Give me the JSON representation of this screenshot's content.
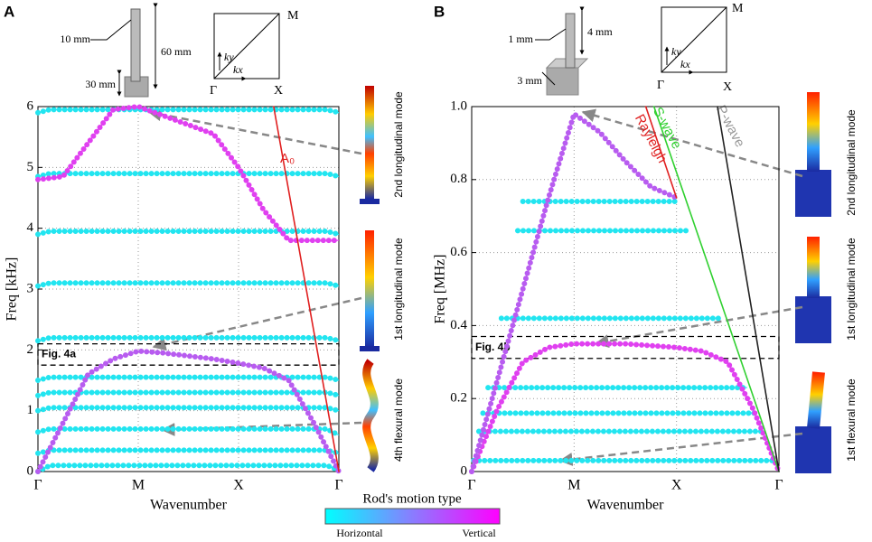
{
  "colorbar": {
    "title": "Rod's motion type",
    "min_label": "Horizontal",
    "max_label": "Vertical"
  },
  "chart_data": [
    {
      "type": "line",
      "panel_label": "A",
      "x_label": "Wavenumber",
      "y_label": "Freq [kHz]",
      "xlim": [
        0,
        3
      ],
      "ylim": [
        0,
        6
      ],
      "xticks": [
        {
          "value": 0,
          "label": "Γ"
        },
        {
          "value": 1,
          "label": "M"
        },
        {
          "value": 2,
          "label": "X"
        },
        {
          "value": 3,
          "label": "Γ"
        }
      ],
      "yticks": [
        0,
        1,
        2,
        3,
        4,
        5,
        6
      ],
      "grid": true,
      "highlight": {
        "label": "Fig. 4a",
        "range": [
          1.75,
          2.1
        ]
      },
      "line_labels": [
        "A₀"
      ],
      "inset_labels": [
        "10 mm",
        "60 mm",
        "30 mm",
        "M",
        "ky",
        "kx",
        "Γ",
        "X"
      ],
      "mode_labels": [
        "2nd longitudinal mode",
        "1st longitudinal mode",
        "4th flexural mode"
      ],
      "series": [
        {
          "color": "#22e5f0",
          "style": "dots",
          "x": [
            0,
            0.12,
            2.88,
            3
          ],
          "values": [
            0,
            0.1,
            0.1,
            0.02
          ]
        },
        {
          "color": "#22e5f0",
          "style": "dots",
          "x": [
            0,
            0.12,
            2.88,
            3
          ],
          "values": [
            0.3,
            0.35,
            0.35,
            0.3
          ]
        },
        {
          "color": "#22e5f0",
          "style": "dots",
          "x": [
            0,
            0.12,
            2.88,
            3
          ],
          "values": [
            0.65,
            0.7,
            0.7,
            0.6
          ]
        },
        {
          "color": "#22e5f0",
          "style": "dots",
          "x": [
            0,
            0.12,
            2.88,
            3
          ],
          "values": [
            1.0,
            1.05,
            1.05,
            1.0
          ]
        },
        {
          "color": "#22e5f0",
          "style": "dots",
          "x": [
            0,
            0.12,
            2.88,
            3
          ],
          "values": [
            1.25,
            1.3,
            1.3,
            1.25
          ]
        },
        {
          "color": "#22e5f0",
          "style": "dots",
          "x": [
            0,
            0.12,
            2.88,
            3
          ],
          "values": [
            1.5,
            1.55,
            1.55,
            1.5
          ]
        },
        {
          "color": "#22e5f0",
          "style": "dots",
          "x": [
            0,
            0.12,
            2.88,
            3
          ],
          "values": [
            2.15,
            2.2,
            2.2,
            2.15
          ]
        },
        {
          "color": "#22e5f0",
          "style": "dots",
          "x": [
            0,
            0.12,
            2.88,
            3
          ],
          "values": [
            3.05,
            3.1,
            3.1,
            3.05
          ]
        },
        {
          "color": "#22e5f0",
          "style": "dots",
          "x": [
            0,
            0.12,
            2.88,
            3
          ],
          "values": [
            3.9,
            3.95,
            3.95,
            3.9
          ]
        },
        {
          "color": "#22e5f0",
          "style": "dots",
          "x": [
            0,
            0.12,
            2.88,
            3
          ],
          "values": [
            4.85,
            4.9,
            4.9,
            4.85
          ]
        },
        {
          "color": "#22e5f0",
          "style": "dots",
          "x": [
            0,
            0.12,
            2.88,
            3
          ],
          "values": [
            5.9,
            5.95,
            5.95,
            5.9
          ]
        },
        {
          "color": "#b85cf0",
          "style": "dots",
          "x": [
            0,
            0.25,
            0.5,
            0.75,
            1,
            1.25,
            1.5,
            1.75,
            2,
            2.25,
            2.5,
            2.75,
            3
          ],
          "values": [
            0,
            0.8,
            1.6,
            1.85,
            1.98,
            1.95,
            1.9,
            1.85,
            1.78,
            1.7,
            1.5,
            0.8,
            0
          ]
        },
        {
          "color": "#e040f0",
          "style": "dots",
          "x": [
            0,
            0.25,
            0.5,
            0.75,
            1,
            1.25,
            1.5,
            1.75,
            2,
            2.25,
            2.5,
            2.75,
            3
          ],
          "values": [
            4.8,
            4.85,
            5.4,
            5.95,
            6.0,
            5.85,
            5.7,
            5.55,
            5.0,
            4.3,
            3.8,
            3.8,
            3.8
          ]
        },
        {
          "color": "#e02020",
          "style": "line",
          "x": [
            2.35,
            3
          ],
          "values": [
            6,
            0
          ]
        }
      ]
    },
    {
      "type": "line",
      "panel_label": "B",
      "x_label": "Wavenumber",
      "y_label": "Freq [MHz]",
      "xlim": [
        0,
        3
      ],
      "ylim": [
        0,
        1
      ],
      "xticks": [
        {
          "value": 0,
          "label": "Γ"
        },
        {
          "value": 1,
          "label": "M"
        },
        {
          "value": 2,
          "label": "X"
        },
        {
          "value": 3,
          "label": "Γ"
        }
      ],
      "yticks": [
        0,
        0.2,
        0.4,
        0.6,
        0.8,
        {
          "value": 1,
          "label": "1.0"
        }
      ],
      "grid": true,
      "highlight": {
        "label": "Fig. 4b",
        "range": [
          0.31,
          0.37
        ]
      },
      "line_labels": [
        "Rayleigh",
        "S-wave",
        "P-wave"
      ],
      "inset_labels": [
        "1 mm",
        "4 mm",
        "3 mm",
        "M",
        "ky",
        "kx",
        "Γ",
        "X"
      ],
      "mode_labels": [
        "2nd longitudinal mode",
        "1st longitudinal mode",
        "1st flexural mode"
      ],
      "series": [
        {
          "color": "#22e5f0",
          "style": "dots",
          "x": [
            0.02,
            2.96
          ],
          "values": [
            0.03,
            0.03
          ]
        },
        {
          "color": "#22e5f0",
          "style": "dots",
          "x": [
            0.07,
            2.85
          ],
          "values": [
            0.11,
            0.11
          ]
        },
        {
          "color": "#22e5f0",
          "style": "dots",
          "x": [
            0.11,
            2.78
          ],
          "values": [
            0.16,
            0.16
          ]
        },
        {
          "color": "#22e5f0",
          "style": "dots",
          "x": [
            0.16,
            2.69
          ],
          "values": [
            0.23,
            0.23
          ]
        },
        {
          "color": "#22e5f0",
          "style": "dots",
          "x": [
            0.29,
            2.43
          ],
          "values": [
            0.42,
            0.42
          ]
        },
        {
          "color": "#22e5f0",
          "style": "dots",
          "x": [
            0.45,
            2.11
          ],
          "values": [
            0.66,
            0.66
          ]
        },
        {
          "color": "#22e5f0",
          "style": "dots",
          "x": [
            0.5,
            2.0
          ],
          "values": [
            0.74,
            0.74
          ]
        },
        {
          "color": "#e040f0",
          "style": "dots",
          "x": [
            0,
            0.25,
            0.5,
            0.75,
            1,
            1.5,
            2,
            2.25,
            2.5,
            2.75,
            3
          ],
          "values": [
            0,
            0.17,
            0.3,
            0.34,
            0.35,
            0.35,
            0.34,
            0.33,
            0.3,
            0.17,
            0
          ]
        },
        {
          "color": "#b85cf0",
          "style": "dots",
          "x": [
            0,
            0.25,
            0.5,
            0.75,
            1,
            1.25,
            1.5,
            1.75,
            2
          ],
          "values": [
            0,
            0.25,
            0.5,
            0.75,
            0.98,
            0.93,
            0.85,
            0.78,
            0.75
          ]
        },
        {
          "color": "#e02020",
          "style": "line",
          "x": [
            1.7,
            2.0
          ],
          "values": [
            1,
            0.75
          ]
        },
        {
          "color": "#30d030",
          "style": "line",
          "x": [
            1.78,
            3
          ],
          "values": [
            1,
            0
          ]
        },
        {
          "color": "#222222",
          "style": "line",
          "x": [
            2.4,
            3
          ],
          "values": [
            1,
            0
          ]
        }
      ]
    }
  ]
}
